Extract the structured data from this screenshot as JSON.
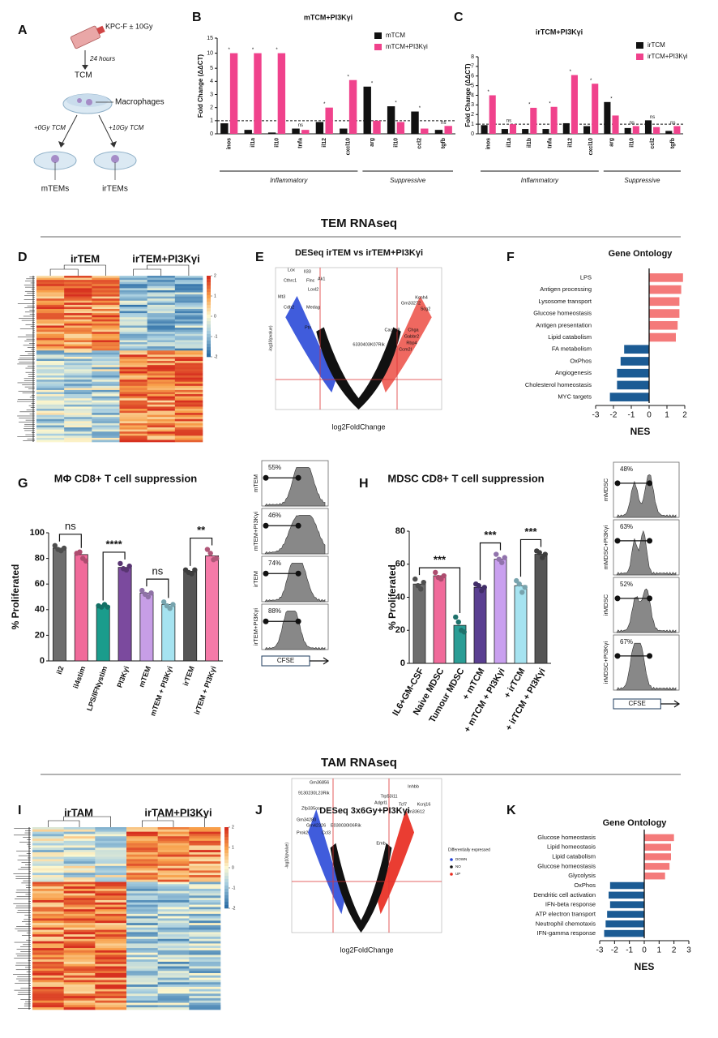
{
  "panel_letters": [
    "A",
    "B",
    "C",
    "D",
    "E",
    "F",
    "G",
    "H",
    "I",
    "J",
    "K"
  ],
  "sections": [
    "TEM RNAseq",
    "TAM RNAseq"
  ],
  "panel_a": {
    "cell_line": "KPC-F ± 10Gy",
    "time": "24 hours",
    "medium": "TCM",
    "cells": "Macrophages",
    "treatment_0": "+0Gy TCM",
    "treatment_10": "+10Gy TCM",
    "result_0": "mTEMs",
    "result_10": "irTEMs"
  },
  "heatmaps": [
    {
      "groups": [
        "irTEM",
        "irTEM+PI3Kγi"
      ],
      "colorbar_ticks": [
        2,
        1,
        0,
        -1,
        -2
      ]
    },
    {
      "groups": [
        "irTAM",
        "irTAM+PI3Kγi"
      ],
      "colorbar_ticks": [
        2,
        1,
        0,
        -1,
        -2
      ]
    }
  ],
  "volcanoes": [
    {
      "title": "DESeq irTEM vs irTEM+PI3Kγi",
      "x_label": "log2FoldChange",
      "y_label": "-log10(pvalue)",
      "down_genes": [
        "Lox",
        "Il33",
        "Cthrc1",
        "Flnc",
        "Ak1",
        "Loxl2",
        "Mt3",
        "Cdh2",
        "Medag",
        "Ptn"
      ],
      "up_genes": [
        "Kcnh4",
        "Gm33272",
        "Scg2",
        "Cacng8",
        "Chga",
        "Gabbr2",
        "Rbp4",
        "6330403K07Rik",
        "Ccm2l"
      ]
    },
    {
      "title": "DESeq 3x6Gy+PI3Kγi",
      "x_label": "log2FoldChange",
      "y_label": "-log10(pvalue)",
      "down_genes": [
        "Gm36856",
        "9130230L23Rik",
        "Zfp335os",
        "Gm34280",
        "Gm42326",
        "E030030I06Rik",
        "Prok2",
        "Ccl3"
      ],
      "up_genes": [
        "Inhbb",
        "Trp53i11",
        "Adgrl1",
        "Tcf7",
        "Kcnj16",
        "Gm33612",
        "Emb"
      ],
      "legend": {
        "title": "Differentially expressed",
        "entries": [
          "DOWN",
          "NO",
          "UP"
        ],
        "colors": [
          "#1f3fd6",
          "#111111",
          "#e8281c"
        ]
      }
    }
  ],
  "flow": [
    {
      "axis_label": "CFSE",
      "panels": [
        {
          "label": "mTEM",
          "percent": "55%"
        },
        {
          "label": "mTEM+PI3Kγi",
          "percent": "46%"
        },
        {
          "label": "irTEM",
          "percent": "74%"
        },
        {
          "label": "irTEM+PI3Kγi",
          "percent": "88%"
        }
      ]
    },
    {
      "axis_label": "CFSE",
      "panels": [
        {
          "label": "mMDSC",
          "percent": "48%"
        },
        {
          "label": "mMDSC+PI3Kγi",
          "percent": "63%"
        },
        {
          "label": "irMDSC",
          "percent": "52%"
        },
        {
          "label": "irMDSC+PI3Kγi",
          "percent": "67%"
        }
      ]
    }
  ],
  "chart_data": [
    {
      "type": "bar",
      "title": "mTCM+PI3Kγi",
      "y_label": "Fold Change (ΔΔCT)",
      "categories": [
        "inos",
        "il1a",
        "il10",
        "tnfa",
        "il12",
        "cxcl10",
        "arg",
        "il10",
        "ccl2",
        "tgfb"
      ],
      "series": [
        {
          "name": "mTCM",
          "color": "#111111",
          "values": [
            0.8,
            0.3,
            0.1,
            0.4,
            0.9,
            0.4,
            3.6,
            2.1,
            1.7,
            0.3
          ]
        },
        {
          "name": "mTCM+PI3Kγi",
          "color": "#f0428c",
          "values": [
            10,
            10,
            10,
            0.3,
            2.0,
            4.1,
            1.0,
            0.9,
            0.4,
            0.6
          ]
        }
      ],
      "sig": [
        "*",
        "*",
        "*",
        "ns",
        "*",
        "*",
        "*",
        "*",
        "*",
        "ns"
      ],
      "groups": [
        "Inflammatory",
        "Suppressive"
      ],
      "reference_line": 1,
      "ylim": [
        0,
        15
      ],
      "yticks": [
        0,
        1,
        2,
        3,
        4,
        5,
        10,
        15
      ]
    },
    {
      "type": "bar",
      "title": "irTCM+PI3Kγi",
      "y_label": "Fold Change (ΔΔCT)",
      "categories": [
        "inos",
        "il1a",
        "il1b",
        "tnfa",
        "il12",
        "cxcl10",
        "arg",
        "il10",
        "ccl2",
        "tgfb"
      ],
      "series": [
        {
          "name": "irTCM",
          "color": "#111111",
          "values": [
            0.9,
            0.5,
            0.5,
            0.5,
            1.1,
            0.8,
            3.3,
            0.6,
            1.4,
            0.3
          ]
        },
        {
          "name": "irTCM+PI3Kγi",
          "color": "#f0428c",
          "values": [
            4.0,
            1.0,
            2.7,
            2.8,
            6.1,
            5.2,
            1.9,
            0.8,
            0.7,
            0.8
          ]
        }
      ],
      "sig": [
        "*",
        "ns",
        "*",
        "*",
        "*",
        "*",
        "*",
        "ns",
        "ns",
        "ns"
      ],
      "groups": [
        "Inflammatory",
        "Suppressive"
      ],
      "reference_line": 1,
      "ylim": [
        0,
        8
      ],
      "yticks": [
        0,
        1,
        2,
        3,
        4,
        5,
        6,
        7,
        8
      ]
    },
    {
      "type": "hbar",
      "title": "Gene Ontology",
      "x_label": "NES",
      "categories": [
        "LPS",
        "Antigen processing",
        "Lysosome transport",
        "Glucose homeostasis",
        "Antigen presentation",
        "Lipid catabolism",
        "FA metabolism",
        "OxPhos",
        "Angiogenesis",
        "Cholesterol homeostasis",
        "MYC targets"
      ],
      "values": [
        1.9,
        1.8,
        1.7,
        1.7,
        1.6,
        1.5,
        -1.4,
        -1.6,
        -1.8,
        -1.8,
        -2.2
      ],
      "positive_color": "#f47a7a",
      "negative_color": "#1b5b94",
      "xlim": [
        -3,
        2
      ],
      "xticks": [
        -3,
        -2,
        -1,
        0,
        1,
        2
      ]
    },
    {
      "type": "bar",
      "title": "MΦ CD8+ T cell suppression",
      "y_label": "% Proliferated",
      "categories": [
        "il2",
        "il4stim",
        "LPS/IFNγstim",
        "PI3Kγi",
        "mTEM",
        "mTEM + PI3Kγi",
        "irTEM",
        "irTEM + PI3Kγi"
      ],
      "values": [
        88,
        83,
        43,
        73,
        53,
        44,
        70,
        82
      ],
      "colors": [
        "#6d6d6d",
        "#f06a9a",
        "#1a9c8c",
        "#7b4a9e",
        "#c79ee6",
        "#a6e3f0",
        "#555555",
        "#f57aa8"
      ],
      "points": [
        [
          90,
          87,
          86,
          88
        ],
        [
          84,
          85,
          80,
          78
        ],
        [
          43,
          42,
          44,
          42
        ],
        [
          76,
          72,
          71,
          74
        ],
        [
          55,
          52,
          50,
          53
        ],
        [
          46,
          43,
          41,
          44
        ],
        [
          71,
          69,
          68,
          71
        ],
        [
          87,
          84,
          79,
          80
        ]
      ],
      "comparisons": [
        "ns",
        "****",
        "ns",
        "**"
      ],
      "ylim": [
        0,
        100
      ],
      "yticks": [
        0,
        20,
        40,
        60,
        80,
        100
      ]
    },
    {
      "type": "bar",
      "title": "MDSC CD8+ T cell suppression",
      "y_label": "% Proliferated",
      "categories": [
        "IL6+GM-CSF",
        "Naive MDSC",
        "Tumour MDSC",
        "+ mTCM",
        "+ mTCM + PI3Kγi",
        "+ irTCM",
        "+ irTCM + PI3Kγi"
      ],
      "values": [
        48,
        53,
        23,
        46,
        63,
        47,
        66
      ],
      "colors": [
        "#6d6d6d",
        "#f06a9a",
        "#2a9d95",
        "#5a3f91",
        "#c9a0ef",
        "#a6e3f0",
        "#555555"
      ],
      "points": [
        [
          51,
          47,
          45,
          49
        ],
        [
          55,
          52,
          51,
          53
        ],
        [
          28,
          25,
          20,
          19
        ],
        [
          48,
          47,
          44,
          46
        ],
        [
          66,
          63,
          61,
          64
        ],
        [
          50,
          48,
          43,
          46
        ],
        [
          68,
          67,
          64,
          66
        ]
      ],
      "comparisons": [
        "***",
        "***",
        "***"
      ],
      "ylim": [
        0,
        80
      ],
      "yticks": [
        0,
        20,
        40,
        60,
        80
      ]
    },
    {
      "type": "hbar",
      "title": "Gene Ontology",
      "x_label": "NES",
      "categories": [
        "Glucose homeostasis",
        "Lipid homeostasis",
        "Lipid catabolism",
        "Glucose homeostasis",
        "Glycolysis",
        "OxPhos",
        "Dendritic cell activation",
        "IFN-beta response",
        "ATP electron transport",
        "Neutrophil chemotaxis",
        "IFN-gamma response"
      ],
      "values": [
        2.0,
        1.8,
        1.8,
        1.7,
        1.4,
        -2.3,
        -2.4,
        -2.3,
        -2.5,
        -2.6,
        -2.7
      ],
      "positive_color": "#f47a7a",
      "negative_color": "#1b5b94",
      "xlim": [
        -3,
        3
      ],
      "xticks": [
        -3,
        -2,
        -1,
        0,
        1,
        2,
        3
      ]
    }
  ]
}
